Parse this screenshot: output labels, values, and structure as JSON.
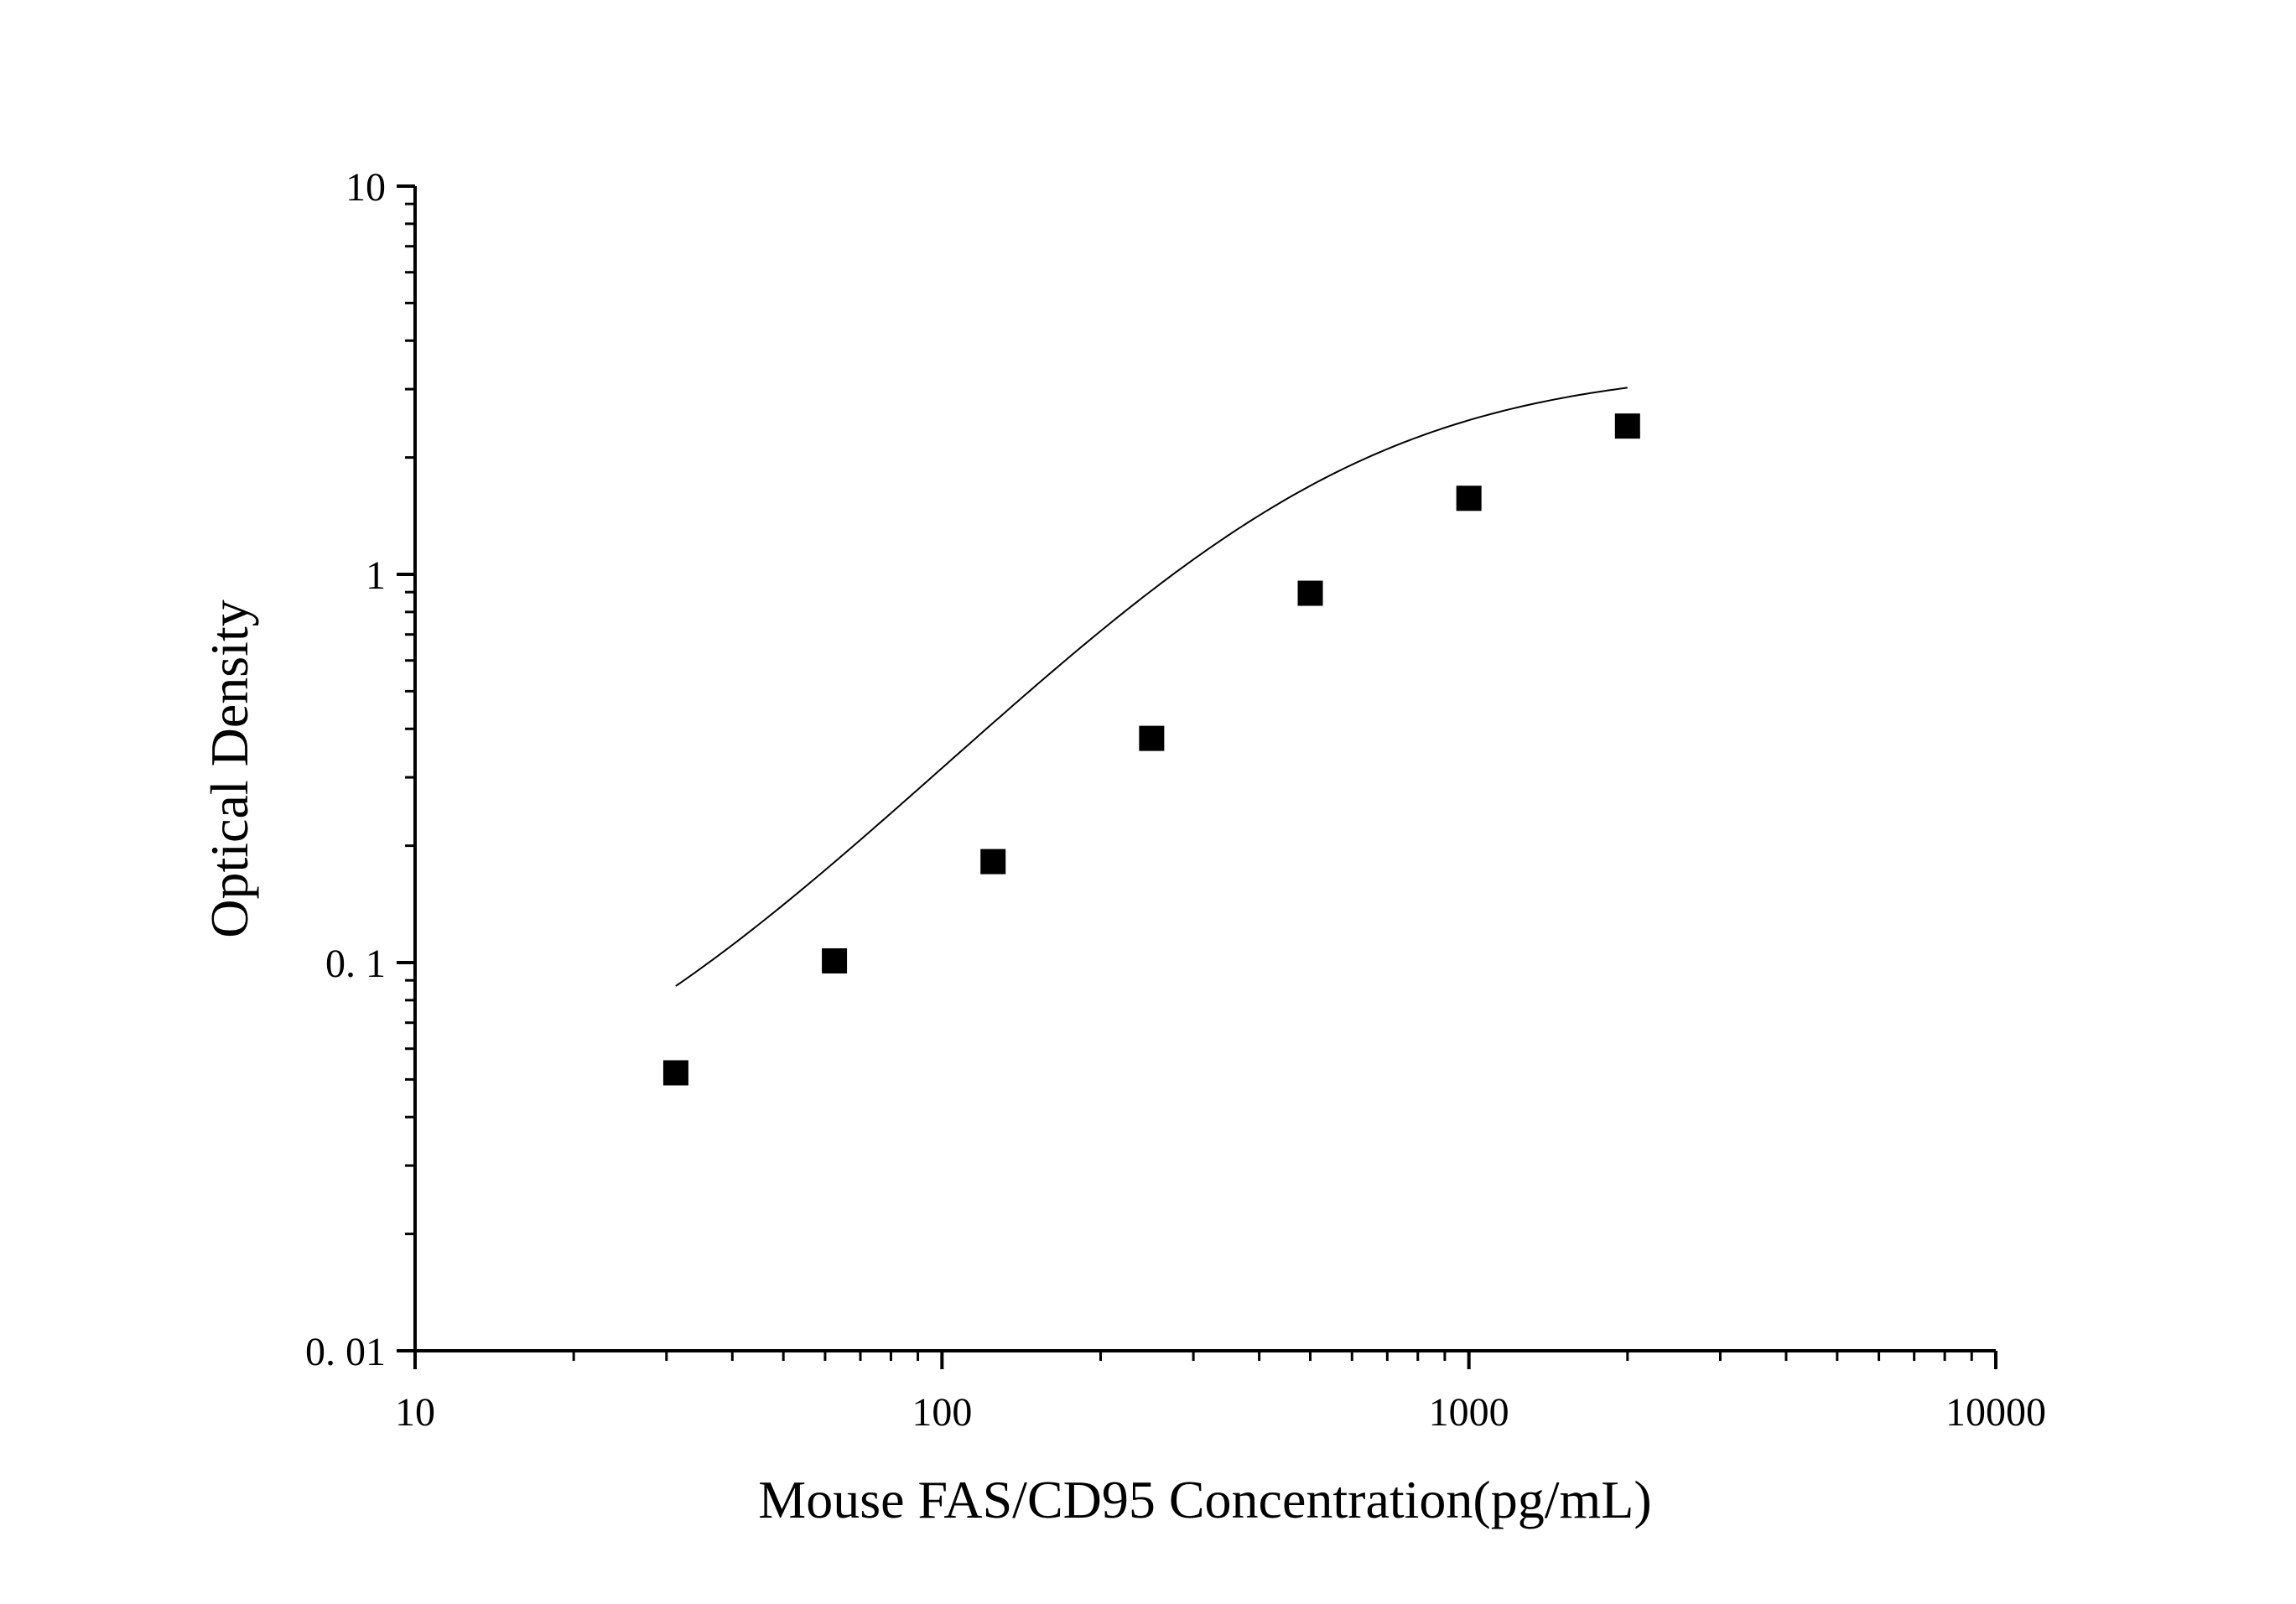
{
  "chart_data": {
    "type": "scatter",
    "xlabel": "Mouse FAS/CD95 Concentration(pg/mL)",
    "ylabel": "Optical Density",
    "xscale": "log",
    "yscale": "log",
    "xlim": [
      10,
      10000
    ],
    "ylim": [
      0.01,
      10
    ],
    "x_tick_labels": [
      "10",
      "100",
      "1000",
      "10000"
    ],
    "y_tick_labels": [
      "0. 01",
      "0. 1",
      "1",
      "10"
    ],
    "x_tick_values": [
      10,
      100,
      1000,
      10000
    ],
    "y_tick_values": [
      0.01,
      0.1,
      1,
      10
    ],
    "grid": false,
    "legend": "none",
    "marker": "square",
    "color": "#000000",
    "series": [
      {
        "x": [
          31.25,
          62.5,
          125,
          250,
          500,
          1000,
          2000
        ],
        "y": [
          0.052,
          0.101,
          0.182,
          0.378,
          0.894,
          1.57,
          2.41
        ]
      }
    ],
    "fit_curve": {
      "type": "4PL",
      "a": 0.03,
      "b": 1.45,
      "c": 520,
      "d": 3.45,
      "x_range": [
        31.25,
        2000
      ]
    }
  }
}
